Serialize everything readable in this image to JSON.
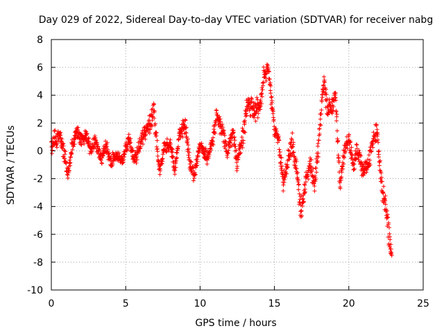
{
  "chart_data": {
    "type": "scatter",
    "title": "Day 029 of 2022, Sidereal Day-to-day VTEC variation (SDTVAR) for receiver nabg",
    "xlabel": "GPS time / hours",
    "ylabel": "SDTVAR / TECUs",
    "xlim": [
      0,
      25
    ],
    "ylim": [
      -10,
      8
    ],
    "xticks": [
      0,
      5,
      10,
      15,
      20,
      25
    ],
    "xtick_labels": [
      "0",
      "5",
      "10",
      "15",
      "20",
      "25"
    ],
    "yticks": [
      -10,
      -8,
      -6,
      -4,
      -2,
      0,
      2,
      4,
      6,
      8
    ],
    "ytick_labels": [
      "-10",
      "-8",
      "-6",
      "-4",
      "-2",
      "0",
      "2",
      "4",
      "6",
      "8"
    ],
    "grid": true,
    "marker": "+",
    "series": [
      {
        "name": "SDTVAR",
        "color": "#ff0000",
        "trend": {
          "x": [
            0.0,
            0.3,
            0.6,
            0.9,
            1.1,
            1.4,
            1.7,
            2.0,
            2.3,
            2.6,
            3.0,
            3.3,
            3.7,
            4.0,
            4.4,
            4.8,
            5.2,
            5.6,
            5.9,
            6.2,
            6.6,
            6.9,
            7.1,
            7.3,
            7.6,
            8.0,
            8.3,
            8.6,
            9.0,
            9.3,
            9.6,
            10.0,
            10.4,
            10.8,
            11.1,
            11.5,
            11.8,
            12.2,
            12.5,
            12.9,
            13.2,
            13.6,
            14.0,
            14.3,
            14.6,
            14.8,
            15.0,
            15.3,
            15.6,
            15.9,
            16.2,
            16.5,
            16.8,
            17.1,
            17.4,
            17.7,
            18.0,
            18.3,
            18.6,
            18.9,
            19.1,
            19.4,
            19.7,
            20.0,
            20.3,
            20.6,
            21.0,
            21.3,
            21.6,
            21.9,
            22.2,
            22.5,
            22.7,
            22.9
          ],
          "y": [
            0.5,
            0.8,
            1.2,
            -0.5,
            -1.8,
            0.5,
            1.4,
            0.8,
            1.2,
            0.2,
            0.6,
            -0.5,
            0.3,
            -0.8,
            -0.3,
            -0.6,
            0.8,
            -0.7,
            0.2,
            1.2,
            1.8,
            3.0,
            0.2,
            -1.5,
            0.3,
            0.5,
            -1.5,
            1.2,
            2.0,
            -0.8,
            -1.8,
            0.5,
            -0.5,
            0.5,
            2.5,
            1.5,
            0.0,
            1.2,
            -0.8,
            1.0,
            3.5,
            3.0,
            3.0,
            5.5,
            6.0,
            3.5,
            1.5,
            0.8,
            -2.5,
            -0.5,
            0.5,
            -1.5,
            -4.5,
            -2.0,
            -1.0,
            -2.5,
            1.0,
            5.0,
            3.0,
            3.0,
            4.0,
            -2.5,
            0.0,
            1.0,
            -1.0,
            0.0,
            -1.5,
            -1.0,
            0.5,
            1.5,
            -2.5,
            -4.0,
            -6.0,
            -8.0
          ],
          "scatter": [
            0.9,
            0.9,
            0.9,
            1.0,
            0.8,
            0.8,
            0.8,
            0.7,
            0.7,
            0.7,
            0.8,
            0.8,
            0.7,
            0.7,
            0.6,
            0.6,
            0.7,
            0.7,
            0.7,
            0.7,
            0.9,
            0.9,
            0.9,
            0.8,
            0.8,
            0.8,
            0.8,
            0.9,
            0.9,
            0.8,
            0.6,
            0.6,
            0.7,
            0.8,
            0.8,
            0.9,
            0.9,
            0.9,
            0.9,
            1.0,
            1.0,
            1.1,
            1.1,
            1.2,
            0.8,
            1.0,
            1.0,
            1.0,
            1.1,
            1.1,
            1.1,
            1.2,
            1.2,
            1.0,
            1.0,
            1.0,
            1.1,
            1.2,
            1.1,
            1.0,
            1.1,
            0.8,
            0.9,
            0.9,
            0.9,
            0.9,
            0.9,
            0.9,
            1.0,
            1.0,
            1.0,
            1.1,
            1.3,
            1.1
          ]
        }
      }
    ]
  }
}
